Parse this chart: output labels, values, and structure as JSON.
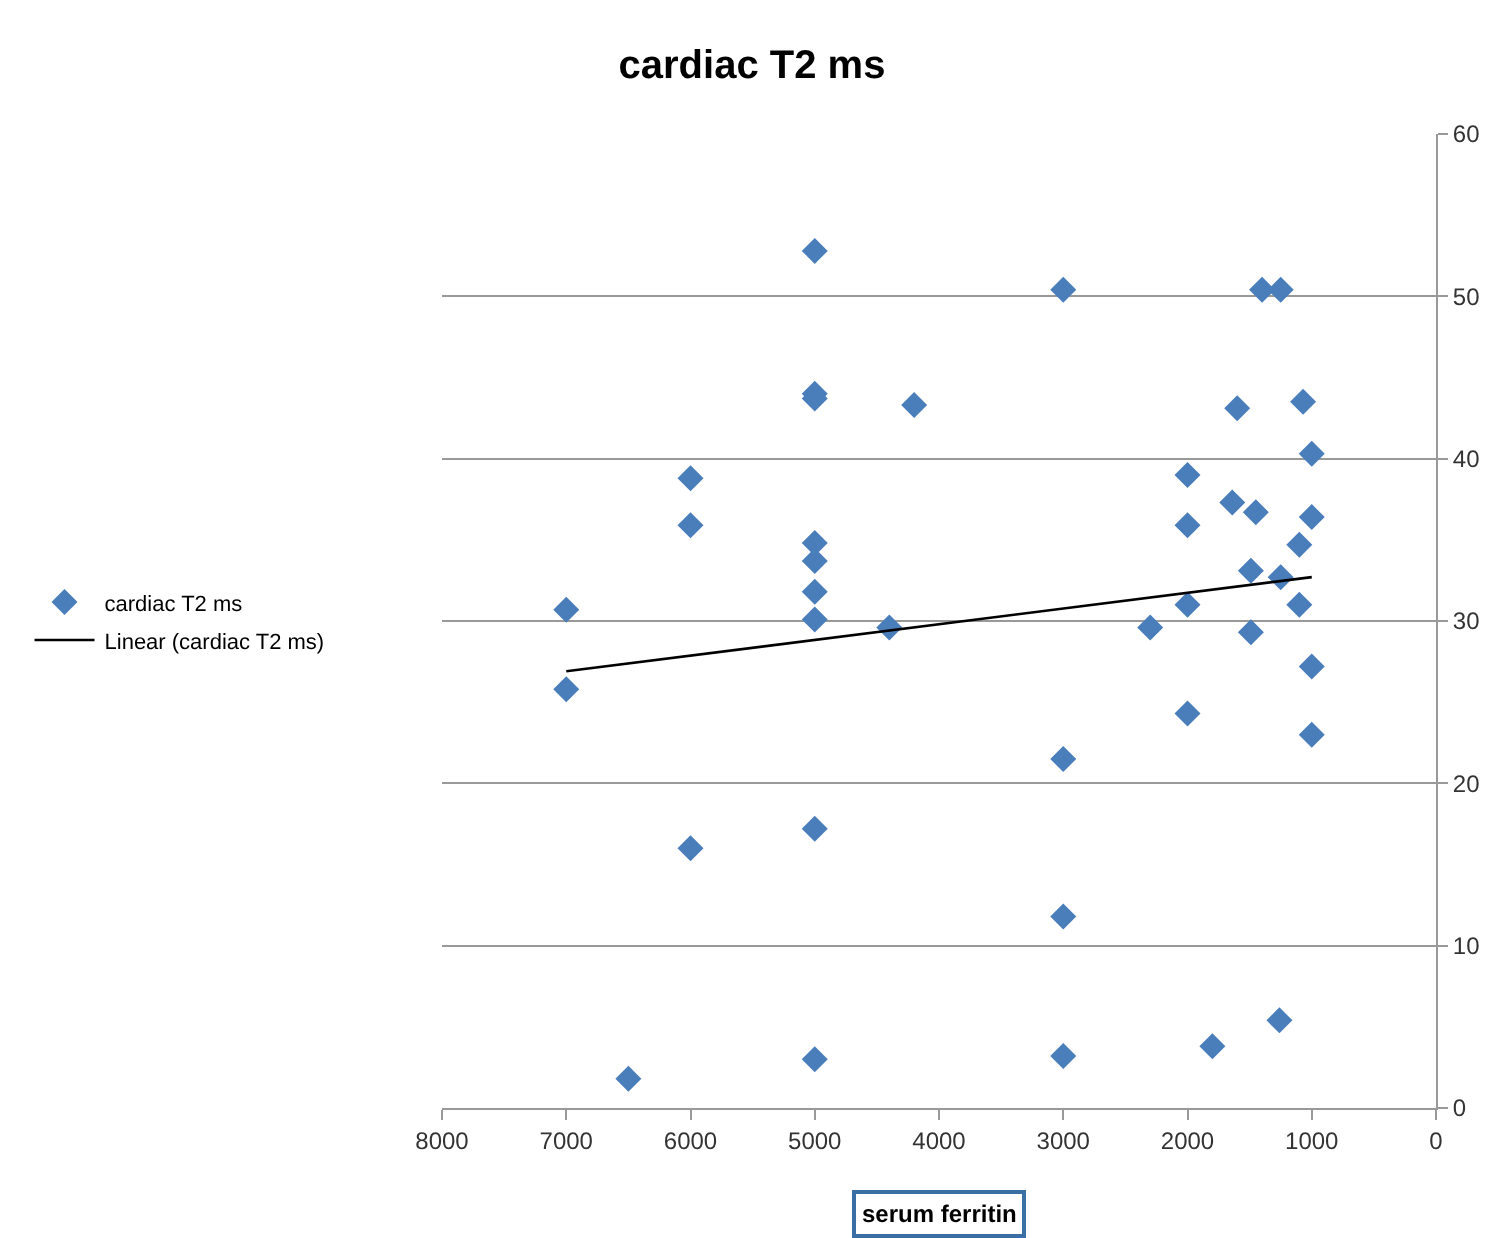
{
  "chart_data": {
    "type": "scatter",
    "title": "cardiac T2 ms",
    "xlabel": "serum ferritin",
    "xlim": [
      8000,
      0
    ],
    "xticks": [
      8000,
      7000,
      6000,
      5000,
      4000,
      3000,
      2000,
      1000,
      0
    ],
    "ylim": [
      0,
      60
    ],
    "yticks": [
      0,
      10,
      20,
      30,
      40,
      50,
      60
    ],
    "grid": "y",
    "legend": "left",
    "marker": "diamond",
    "series": [
      {
        "name": "cardiac T2 ms",
        "color": "#4a7ebb",
        "x": [
          7000,
          7000,
          6500,
          6000,
          6000,
          6000,
          5000,
          5000,
          5000,
          5000,
          5000,
          5000,
          5000,
          5000,
          5000,
          4400,
          4200,
          3000,
          3000,
          3000,
          3000,
          2300,
          2000,
          2000,
          2000,
          2000,
          1800,
          1640,
          1600,
          1450,
          1490,
          1490,
          1400,
          1250,
          1250,
          1260,
          1070,
          1100,
          1100,
          1000,
          1000,
          1000,
          1000
        ],
        "values": [
          30.7,
          25.8,
          1.8,
          38.8,
          35.9,
          16.0,
          52.8,
          44.0,
          43.7,
          34.8,
          33.7,
          31.8,
          30.1,
          17.2,
          3.0,
          29.6,
          43.3,
          50.4,
          21.5,
          11.8,
          3.2,
          29.6,
          39.0,
          35.9,
          31.0,
          24.3,
          3.8,
          37.3,
          43.1,
          36.7,
          33.1,
          29.3,
          50.4,
          50.4,
          32.7,
          5.4,
          43.5,
          34.7,
          31.0,
          40.3,
          36.4,
          27.2,
          23.0
        ]
      },
      {
        "name": "Linear (cardiac T2 ms)",
        "color": "#000000",
        "type": "line",
        "marker": "none",
        "x": [
          7000,
          1000
        ],
        "values": [
          26.9,
          32.7
        ]
      }
    ]
  }
}
